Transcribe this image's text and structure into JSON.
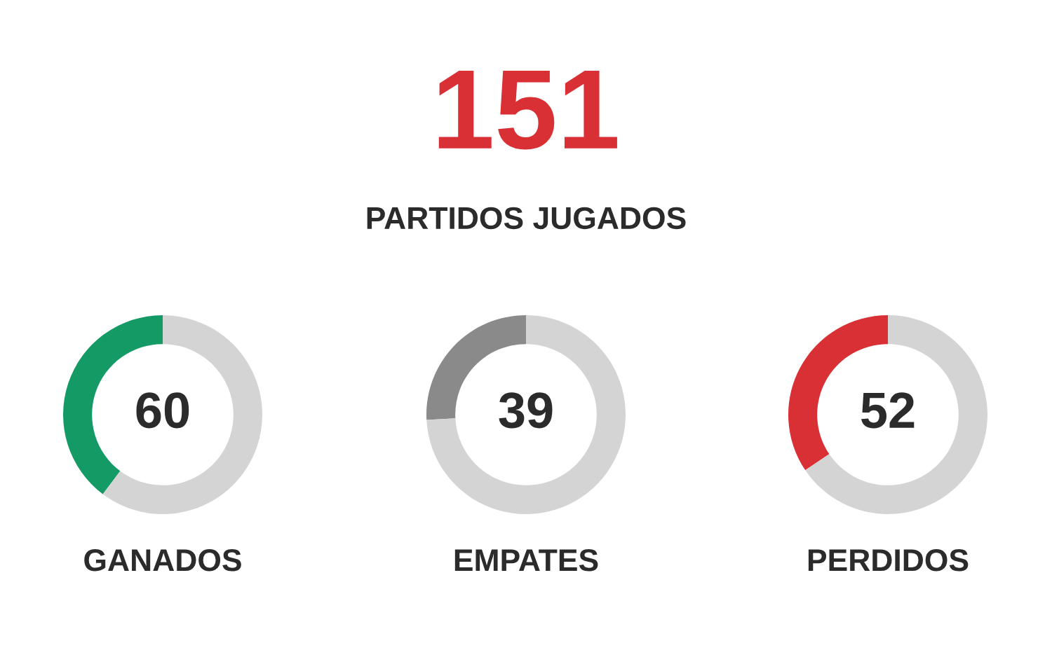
{
  "chart_data": [
    {
      "type": "other",
      "title": "151",
      "subtitle": "PARTIDOS JUGADOS"
    },
    {
      "type": "donut",
      "categories": [
        null,
        null
      ],
      "values": [
        60,
        91
      ],
      "colors": [
        "#149a64",
        "#d4d4d4"
      ],
      "value_labels": [
        "60",
        null
      ],
      "xlabel": "GANADOS"
    },
    {
      "type": "donut",
      "categories": [
        null,
        null
      ],
      "values": [
        39,
        112
      ],
      "colors": [
        "#8a8a8a",
        "#d4d4d4"
      ],
      "value_labels": [
        "39",
        null
      ],
      "xlabel": "EMPATES"
    },
    {
      "type": "donut",
      "categories": [
        null,
        null
      ],
      "values": [
        52,
        99
      ],
      "colors": [
        "#d93036",
        "#d4d4d4"
      ],
      "value_labels": [
        "52",
        null
      ],
      "xlabel": "PERDIDOS"
    }
  ]
}
